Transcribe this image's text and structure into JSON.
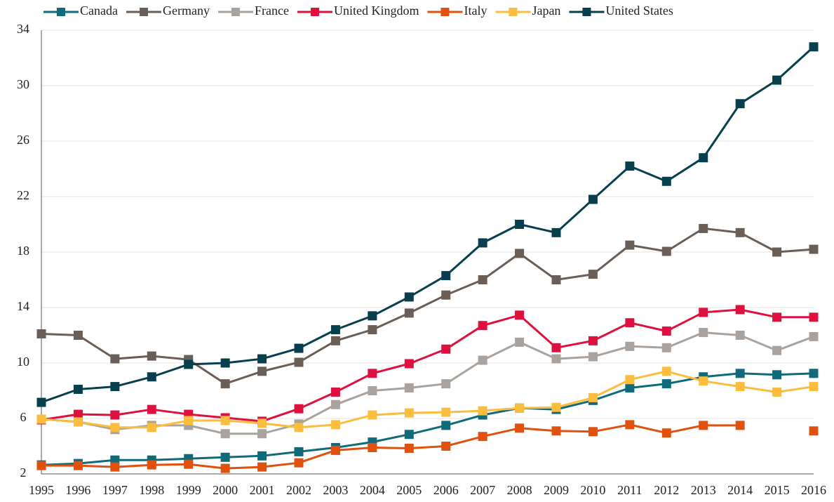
{
  "chart_data": {
    "type": "line",
    "categories": [
      "1995",
      "1996",
      "1997",
      "1998",
      "1999",
      "2000",
      "2001",
      "2002",
      "2003",
      "2004",
      "2005",
      "2006",
      "2007",
      "2008",
      "2009",
      "2010",
      "2011",
      "2012",
      "2013",
      "2014",
      "2015",
      "2016"
    ],
    "series": [
      {
        "name": "Canada",
        "color": "#0f6b7a",
        "values": [
          2.65,
          2.75,
          3.0,
          3.0,
          3.1,
          3.2,
          3.3,
          3.6,
          3.9,
          4.3,
          4.85,
          5.5,
          6.25,
          6.75,
          6.65,
          7.3,
          8.2,
          8.5,
          9.0,
          9.25,
          9.15,
          9.25
        ]
      },
      {
        "name": "Germany",
        "color": "#6b5e56",
        "values": [
          12.1,
          12.0,
          10.3,
          10.5,
          10.25,
          8.5,
          9.4,
          10.05,
          11.6,
          12.4,
          13.6,
          14.9,
          16.0,
          17.9,
          16.0,
          16.4,
          18.5,
          18.05,
          19.7,
          19.4,
          18.0,
          18.2
        ]
      },
      {
        "name": "France",
        "color": "#aaa29c",
        "values": [
          5.95,
          5.75,
          5.2,
          5.5,
          5.5,
          4.9,
          4.9,
          5.6,
          7.0,
          8.0,
          8.2,
          8.5,
          10.2,
          11.5,
          10.3,
          10.45,
          11.2,
          11.1,
          12.2,
          12.0,
          10.9,
          11.9
        ]
      },
      {
        "name": "United Kingdom",
        "color": "#e0103e",
        "values": [
          5.9,
          6.3,
          6.25,
          6.65,
          6.3,
          6.05,
          5.8,
          6.7,
          7.9,
          9.25,
          9.95,
          11.0,
          12.7,
          13.45,
          11.1,
          11.6,
          12.9,
          12.3,
          13.65,
          13.85,
          13.3,
          13.3
        ]
      },
      {
        "name": "Italy",
        "color": "#e0500f",
        "values": [
          2.6,
          2.6,
          2.5,
          2.65,
          2.7,
          2.4,
          2.5,
          2.8,
          3.7,
          3.9,
          3.85,
          4.0,
          4.7,
          5.3,
          5.1,
          5.05,
          5.55,
          4.95,
          5.5,
          5.5,
          null,
          5.1
        ]
      },
      {
        "name": "Japan",
        "color": "#fbbd3e",
        "values": [
          5.95,
          5.75,
          5.35,
          5.35,
          5.85,
          5.85,
          5.65,
          5.35,
          5.55,
          6.25,
          6.4,
          6.45,
          6.55,
          6.75,
          6.8,
          7.5,
          8.8,
          9.4,
          8.7,
          8.3,
          7.9,
          8.3
        ]
      },
      {
        "name": "United States",
        "color": "#073f4e",
        "values": [
          7.16,
          8.1,
          8.3,
          9.0,
          9.9,
          10.0,
          10.3,
          11.06,
          12.4,
          13.4,
          14.76,
          16.3,
          18.66,
          20.0,
          19.4,
          21.8,
          24.2,
          23.1,
          24.8,
          28.7,
          30.4,
          32.8
        ]
      }
    ],
    "ylim": [
      2,
      34
    ],
    "yticks": [
      2,
      6,
      10,
      14,
      18,
      22,
      26,
      30,
      34
    ],
    "grid": true,
    "legend": "top"
  }
}
